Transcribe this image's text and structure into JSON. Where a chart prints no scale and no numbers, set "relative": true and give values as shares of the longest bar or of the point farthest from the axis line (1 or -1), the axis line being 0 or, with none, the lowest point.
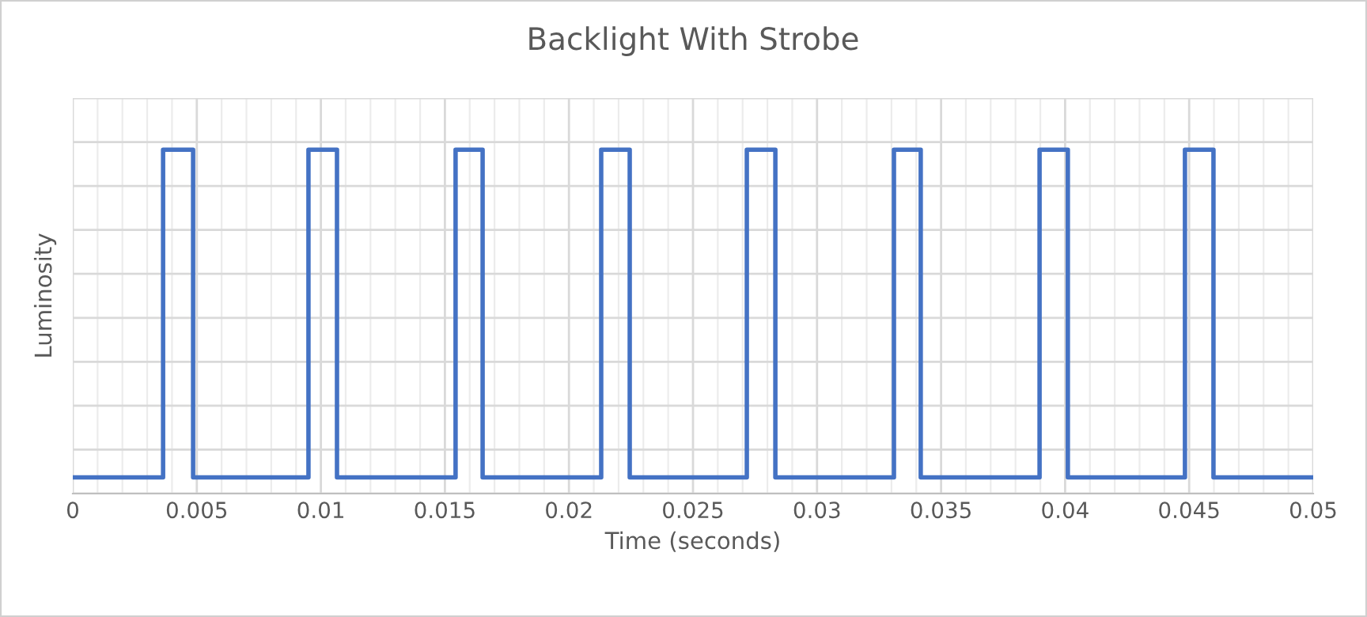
{
  "chart_data": {
    "type": "line",
    "title": "Backlight With Strobe",
    "xlabel": "Time (seconds)",
    "ylabel": "Luminosity",
    "relative": true,
    "xlim": [
      0,
      0.05
    ],
    "xticks": [
      0,
      0.005,
      0.01,
      0.015,
      0.02,
      0.025,
      0.03,
      0.035,
      0.04,
      0.045,
      0.05
    ],
    "grid": true,
    "tick_labels": "x",
    "marker": "none",
    "line_style": "solid",
    "series": [
      {
        "color": "#4472c4",
        "x": [
          0,
          0.00364,
          0.00364,
          0.00485,
          0.00485,
          0.0095,
          0.0095,
          0.01065,
          0.01065,
          0.01543,
          0.01543,
          0.01652,
          0.01652,
          0.0213,
          0.0213,
          0.02245,
          0.02245,
          0.02717,
          0.02717,
          0.02832,
          0.02832,
          0.0331,
          0.0331,
          0.03418,
          0.03418,
          0.03897,
          0.03897,
          0.04011,
          0.04011,
          0.04483,
          0.04483,
          0.04598,
          0.04598,
          0.05
        ],
        "values": [
          0.047,
          0.047,
          1,
          1,
          0.047,
          0.047,
          1,
          1,
          0.047,
          0.047,
          1,
          1,
          0.047,
          0.047,
          1,
          1,
          0.047,
          0.047,
          1,
          1,
          0.047,
          0.047,
          1,
          1,
          0.047,
          0.047,
          1,
          1,
          0.047,
          0.047,
          1,
          1,
          0.047,
          0.047
        ]
      }
    ]
  }
}
